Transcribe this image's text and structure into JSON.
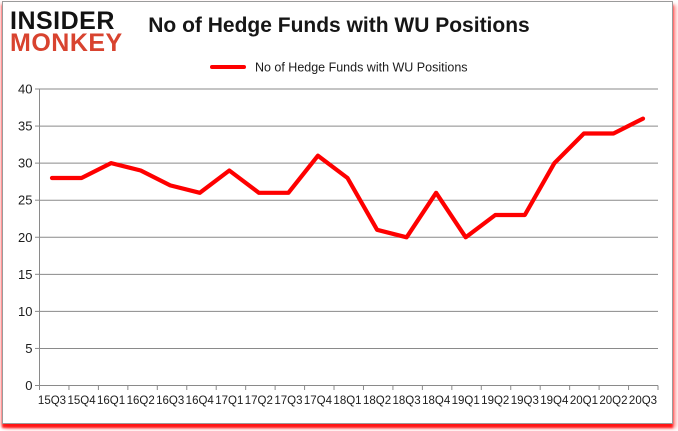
{
  "brand": {
    "line1": "INSIDER",
    "line2": "MONKEY",
    "color1": "#121212",
    "color2": "#d8432f"
  },
  "title": "No of Hedge Funds with WU Positions",
  "legend": {
    "label": "No of Hedge Funds with WU Positions",
    "color": "#fe0000"
  },
  "colors": {
    "line": "#fe0000",
    "grid": "#8a8a8a",
    "axis": "#8a8a8a",
    "tick_label": "#1c1c1c",
    "background": "#ffffff"
  },
  "chart_data": {
    "type": "line",
    "title": "No of Hedge Funds with WU Positions",
    "categories": [
      "15Q3",
      "15Q4",
      "16Q1",
      "16Q2",
      "16Q3",
      "16Q4",
      "17Q1",
      "17Q2",
      "17Q3",
      "17Q4",
      "18Q1",
      "18Q2",
      "18Q3",
      "18Q4",
      "19Q1",
      "19Q2",
      "19Q3",
      "19Q4",
      "20Q1",
      "20Q2",
      "20Q3"
    ],
    "series": [
      {
        "name": "No of Hedge Funds with WU Positions",
        "color": "#fe0000",
        "values": [
          28,
          28,
          30,
          29,
          27,
          26,
          29,
          26,
          26,
          31,
          28,
          21,
          20,
          26,
          20,
          23,
          23,
          30,
          34,
          34,
          36
        ]
      }
    ],
    "xlabel": "",
    "ylabel": "",
    "ylim": [
      0,
      40
    ],
    "yticks": [
      0,
      5,
      10,
      15,
      20,
      25,
      30,
      35,
      40
    ],
    "grid": true,
    "legend_position": "top"
  }
}
